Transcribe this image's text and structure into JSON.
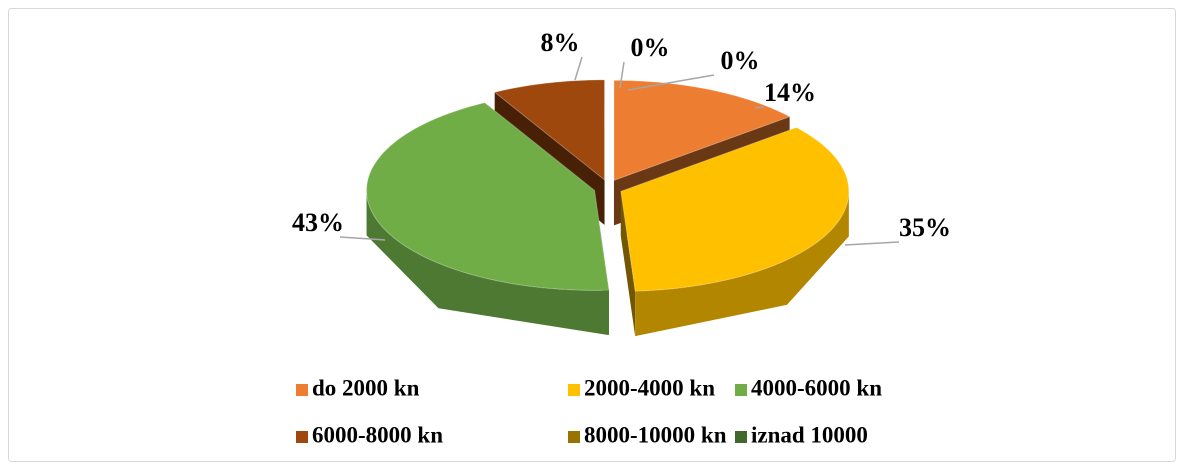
{
  "chart_data": {
    "type": "pie3d",
    "categories": [
      "do 2000 kn",
      "2000-4000 kn",
      "4000-6000 kn",
      "6000-8000 kn",
      "8000-10000 kn",
      "iznad 10000"
    ],
    "values": [
      14,
      35,
      43,
      8,
      0,
      0
    ],
    "value_labels": [
      "14%",
      "35%",
      "43%",
      "8%",
      "0%",
      "0%"
    ],
    "colors": [
      "#ED7D31",
      "#FFC000",
      "#70AD47",
      "#9E480E",
      "#997300",
      "#43682B"
    ],
    "legend": "bottom"
  }
}
